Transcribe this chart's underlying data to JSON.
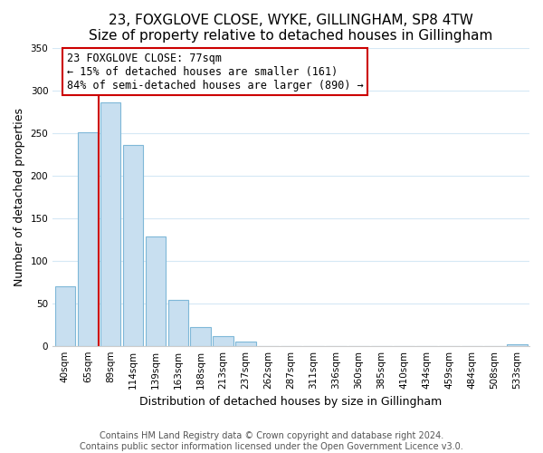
{
  "title": "23, FOXGLOVE CLOSE, WYKE, GILLINGHAM, SP8 4TW",
  "subtitle": "Size of property relative to detached houses in Gillingham",
  "xlabel": "Distribution of detached houses by size in Gillingham",
  "ylabel": "Number of detached properties",
  "bar_labels": [
    "40sqm",
    "65sqm",
    "89sqm",
    "114sqm",
    "139sqm",
    "163sqm",
    "188sqm",
    "213sqm",
    "237sqm",
    "262sqm",
    "287sqm",
    "311sqm",
    "336sqm",
    "360sqm",
    "385sqm",
    "410sqm",
    "434sqm",
    "459sqm",
    "484sqm",
    "508sqm",
    "533sqm"
  ],
  "bar_values": [
    70,
    251,
    286,
    236,
    128,
    54,
    22,
    11,
    5,
    0,
    0,
    0,
    0,
    0,
    0,
    0,
    0,
    0,
    0,
    0,
    2
  ],
  "bar_color": "#c8dff0",
  "bar_edge_color": "#7fb8d8",
  "marker_color": "#cc0000",
  "annotation_title": "23 FOXGLOVE CLOSE: 77sqm",
  "annotation_line1": "← 15% of detached houses are smaller (161)",
  "annotation_line2": "84% of semi-detached houses are larger (890) →",
  "annotation_box_color": "#ffffff",
  "annotation_box_edge": "#cc0000",
  "ylim": [
    0,
    350
  ],
  "yticks": [
    0,
    50,
    100,
    150,
    200,
    250,
    300,
    350
  ],
  "footer_line1": "Contains HM Land Registry data © Crown copyright and database right 2024.",
  "footer_line2": "Contains public sector information licensed under the Open Government Licence v3.0.",
  "background_color": "#ffffff",
  "grid_color": "#d5e8f5",
  "title_fontsize": 11,
  "axis_label_fontsize": 9,
  "tick_fontsize": 7.5,
  "footer_fontsize": 7,
  "annotation_fontsize": 8.5
}
